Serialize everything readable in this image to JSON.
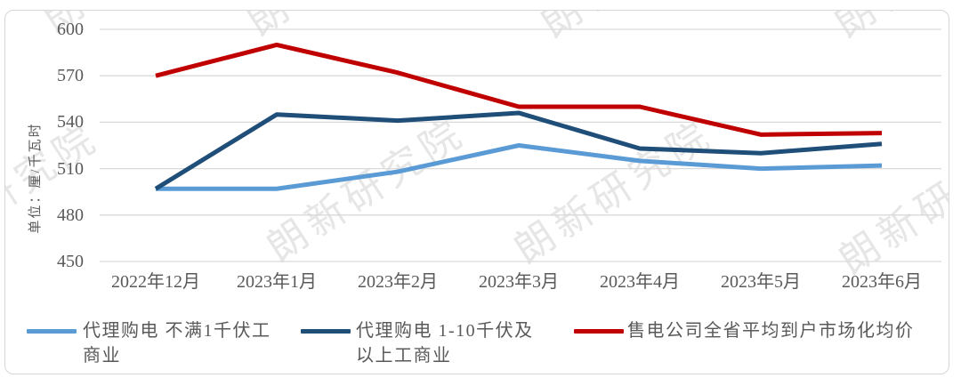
{
  "watermark": {
    "text": "朗新研究院"
  },
  "chart_data": {
    "type": "line",
    "title": "",
    "xlabel": "",
    "ylabel": "单位：厘/千瓦时",
    "ylim": [
      450,
      600
    ],
    "yticks": [
      600,
      570,
      540,
      510,
      480,
      450
    ],
    "grid": true,
    "legend_position": "bottom",
    "categories": [
      "2022年12月",
      "2023年1月",
      "2023年2月",
      "2023年3月",
      "2023年4月",
      "2023年5月",
      "2023年6月"
    ],
    "series": [
      {
        "name": "代理购电 不满1千伏工商业",
        "color": "#5B9BD5",
        "values": [
          497,
          497,
          508,
          525,
          515,
          510,
          512
        ]
      },
      {
        "name": "代理购电 1-10千伏及以上工商业",
        "color": "#1F4E79",
        "values": [
          497,
          545,
          541,
          546,
          523,
          520,
          526
        ]
      },
      {
        "name": "售电公司全省平均到户市场化均价",
        "color": "#C00000",
        "values": [
          570,
          590,
          572,
          550,
          550,
          532,
          533
        ]
      }
    ]
  },
  "legend": {
    "items": [
      {
        "line1": "代理购电 不满1千伏工",
        "line2": "商业"
      },
      {
        "line1": "代理购电 1-10千伏及",
        "line2": "以上工商业"
      },
      {
        "line1": "售电公司全省平均到户市场化均价",
        "line2": ""
      }
    ]
  },
  "colors": {
    "axis_text": "#595959",
    "grid": "#D9D9D9",
    "border": "#D7D7D7",
    "watermark": "#8F8F8F"
  }
}
